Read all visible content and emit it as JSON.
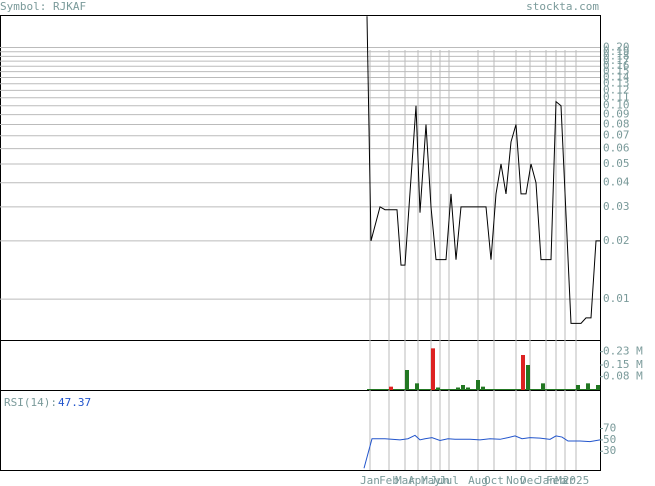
{
  "header": {
    "symbol": "Symbol: RJKAF",
    "site": "stockta.com"
  },
  "chart_data": [
    {
      "type": "line",
      "log_scale": true,
      "grid": true,
      "color": "#000000",
      "x": [
        367,
        371,
        380,
        385,
        397,
        401,
        405,
        416,
        420,
        426,
        431,
        436,
        446,
        451,
        456,
        461,
        486,
        491,
        496,
        501,
        506,
        511,
        516,
        521,
        526,
        531,
        536,
        541,
        551,
        556,
        561,
        571,
        581,
        586,
        591,
        596,
        600
      ],
      "values": [
        0.29,
        0.02,
        0.03,
        0.029,
        0.029,
        0.015,
        0.015,
        0.1,
        0.028,
        0.08,
        0.03,
        0.016,
        0.016,
        0.035,
        0.016,
        0.03,
        0.03,
        0.016,
        0.035,
        0.05,
        0.035,
        0.065,
        0.08,
        0.035,
        0.035,
        0.05,
        0.04,
        0.016,
        0.016,
        0.105,
        0.1,
        0.0075,
        0.0075,
        0.008,
        0.008,
        0.02,
        0.02
      ],
      "xlim": [
        0,
        600
      ],
      "ylim": [
        0.00615,
        0.291
      ],
      "xticks": [
        {
          "value": 370,
          "label": "Jan"
        },
        {
          "value": 389,
          "label": "Feb"
        },
        {
          "value": 405,
          "label": "Mar"
        },
        {
          "value": 418,
          "label": "Apr"
        },
        {
          "value": 431,
          "label": "May"
        },
        {
          "value": 440,
          "label": "Jun"
        },
        {
          "value": 449,
          "label": "Jul"
        },
        {
          "value": 478,
          "label": "Aug"
        },
        {
          "value": 494,
          "label": "Oct"
        },
        {
          "value": 516,
          "label": "Nov"
        },
        {
          "value": 530,
          "label": "Dec"
        },
        {
          "value": 546,
          "label": "Jan"
        },
        {
          "value": 556,
          "label": "Feb"
        },
        {
          "value": 565,
          "label": "Mar"
        },
        {
          "value": 576,
          "label": "2025"
        }
      ],
      "yticks": [
        {
          "value": 0.2,
          "label": "0.20"
        },
        0.19,
        0.18,
        0.17,
        0.16,
        0.15,
        0.14,
        0.13,
        0.12,
        0.11,
        {
          "value": 0.1,
          "label": "0.10"
        },
        0.09,
        0.08,
        0.07,
        0.06,
        0.05,
        0.04,
        0.03,
        0.02,
        0.01
      ]
    },
    {
      "type": "bar",
      "x": [
        391,
        407,
        417,
        433,
        438,
        458,
        463,
        468,
        478,
        483,
        523,
        528,
        543,
        578,
        588,
        598
      ],
      "values": [
        0.02,
        0.12,
        0.04,
        0.25,
        0.015,
        0.015,
        0.03,
        0.015,
        0.06,
        0.02,
        0.21,
        0.15,
        0.04,
        0.03,
        0.04,
        0.03
      ],
      "colors": [
        "#dd2222",
        "#227722",
        "#227722",
        "#dd2222",
        "#227722",
        "#227722",
        "#227722",
        "#227722",
        "#227722",
        "#227722",
        "#dd2222",
        "#227722",
        "#227722",
        "#227722",
        "#227722",
        "#227722"
      ],
      "xlim": [
        0,
        600
      ],
      "ylim": [
        0,
        0.294
      ],
      "yticks": [
        {
          "value": 0.23,
          "label": "0.23 M"
        },
        {
          "value": 0.15,
          "label": "0.15 M"
        },
        {
          "value": 0.08,
          "label": "0.08 M"
        }
      ]
    },
    {
      "type": "line",
      "color": "#2255cc",
      "label": "RSI(14):",
      "value": 47.37,
      "x": [
        364,
        372,
        385,
        400,
        408,
        415,
        420,
        425,
        432,
        440,
        448,
        455,
        470,
        480,
        490,
        500,
        508,
        515,
        522,
        530,
        540,
        550,
        556,
        562,
        568,
        580,
        590,
        600
      ],
      "values": [
        0,
        52,
        52,
        50,
        52,
        58,
        50,
        52,
        54,
        49,
        52,
        51,
        51,
        50,
        52,
        51,
        54,
        57,
        52,
        54,
        53,
        51,
        57,
        55,
        48,
        48,
        47,
        50
      ],
      "xlim": [
        0,
        600
      ],
      "ylim": [
        -3,
        136
      ],
      "yticks": [
        70,
        50,
        30
      ]
    }
  ]
}
